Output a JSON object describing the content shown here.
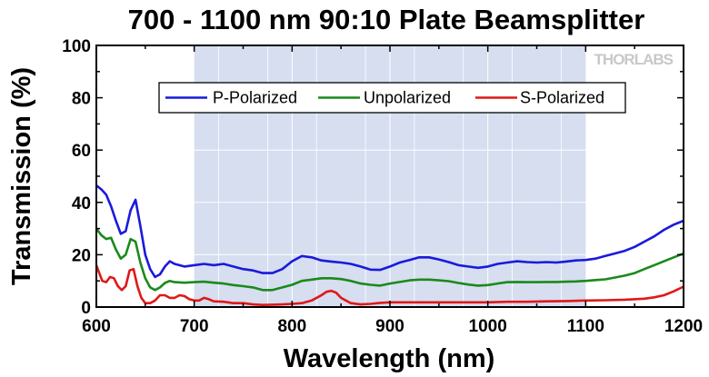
{
  "chart_data": {
    "type": "line",
    "title": "700 - 1100 nm 90:10 Plate Beamsplitter",
    "xlabel": "Wavelength (nm)",
    "ylabel": "Transmission (%)",
    "xlim": [
      600,
      1200
    ],
    "ylim": [
      0,
      100
    ],
    "xticks": [
      600,
      700,
      800,
      900,
      1000,
      1100,
      1200
    ],
    "yticks": [
      0,
      20,
      40,
      60,
      80,
      100
    ],
    "highlight_range": [
      700,
      1100
    ],
    "highlight_color": "#d6def0",
    "brand_text": "THORLABS",
    "legend_position": "top-center",
    "series": [
      {
        "name": "P-Polarized",
        "color": "#1a1adc",
        "x": [
          600,
          605,
          610,
          615,
          620,
          625,
          630,
          635,
          640,
          645,
          650,
          655,
          660,
          665,
          670,
          675,
          680,
          690,
          700,
          710,
          720,
          730,
          740,
          750,
          760,
          770,
          780,
          790,
          800,
          810,
          820,
          830,
          840,
          850,
          860,
          870,
          880,
          890,
          900,
          910,
          920,
          930,
          940,
          950,
          960,
          970,
          980,
          990,
          1000,
          1010,
          1020,
          1030,
          1040,
          1050,
          1060,
          1070,
          1080,
          1090,
          1100,
          1110,
          1120,
          1130,
          1140,
          1150,
          1160,
          1170,
          1180,
          1190,
          1200
        ],
        "y": [
          46.5,
          45,
          43,
          38.5,
          33,
          28,
          29,
          37,
          41,
          31,
          20,
          14.5,
          11.5,
          12.5,
          15.5,
          17.5,
          16.5,
          15.5,
          16,
          16.5,
          16,
          16.5,
          15.5,
          14.5,
          14,
          13,
          13,
          14.5,
          17.5,
          19.5,
          19,
          17.8,
          17.4,
          17,
          16.5,
          15.5,
          14.3,
          14.2,
          15.5,
          17,
          18,
          19,
          19,
          18.2,
          17.2,
          16,
          15.5,
          15,
          15.5,
          16.5,
          17,
          17.5,
          17.2,
          17,
          17.2,
          17,
          17.4,
          17.8,
          18,
          18.5,
          19.5,
          20.5,
          21.5,
          23,
          25,
          27,
          29.5,
          31.5,
          33
        ]
      },
      {
        "name": "Unpolarized",
        "color": "#1a8a1a",
        "x": [
          600,
          605,
          610,
          615,
          620,
          625,
          630,
          635,
          640,
          645,
          650,
          655,
          660,
          665,
          670,
          675,
          680,
          690,
          700,
          710,
          720,
          730,
          740,
          750,
          760,
          770,
          780,
          790,
          800,
          810,
          820,
          830,
          840,
          850,
          860,
          870,
          880,
          890,
          900,
          910,
          920,
          930,
          940,
          950,
          960,
          970,
          980,
          990,
          1000,
          1010,
          1020,
          1030,
          1040,
          1050,
          1060,
          1070,
          1080,
          1090,
          1100,
          1110,
          1120,
          1130,
          1140,
          1150,
          1160,
          1170,
          1180,
          1190,
          1200
        ],
        "y": [
          30,
          27.5,
          26,
          26.5,
          22,
          18.5,
          20,
          26,
          25,
          17,
          11,
          7.5,
          6.5,
          7.5,
          9.2,
          10,
          9.5,
          9.3,
          9.5,
          9.7,
          9.3,
          9,
          8.4,
          8,
          7.5,
          6.5,
          6.5,
          7.5,
          8.5,
          10,
          10.5,
          11,
          11,
          10.7,
          10,
          9,
          8.5,
          8.2,
          9,
          9.6,
          10.2,
          10.5,
          10.5,
          10.2,
          9.9,
          9.2,
          8.6,
          8.2,
          8.4,
          9,
          9.5,
          9.6,
          9.5,
          9.5,
          9.6,
          9.6,
          9.7,
          9.8,
          10,
          10.3,
          10.6,
          11.3,
          12,
          13,
          14.5,
          16,
          17.5,
          19,
          20.5
        ]
      },
      {
        "name": "S-Polarized",
        "color": "#e01818",
        "x": [
          600,
          603,
          606,
          610,
          614,
          618,
          622,
          626,
          630,
          634,
          638,
          642,
          646,
          650,
          655,
          660,
          665,
          670,
          675,
          680,
          685,
          690,
          695,
          700,
          705,
          710,
          715,
          720,
          730,
          740,
          750,
          760,
          770,
          780,
          790,
          800,
          810,
          820,
          830,
          835,
          840,
          845,
          850,
          860,
          870,
          880,
          890,
          900,
          920,
          940,
          960,
          980,
          1000,
          1020,
          1040,
          1060,
          1080,
          1100,
          1120,
          1140,
          1160,
          1170,
          1180,
          1190,
          1200
        ],
        "y": [
          16,
          13,
          10,
          9.5,
          11.5,
          11,
          8,
          6.5,
          8,
          14,
          14.5,
          8,
          3.5,
          1.5,
          1.5,
          2.5,
          4.5,
          4.5,
          3.5,
          3.5,
          4.5,
          4.2,
          3,
          2.5,
          2.5,
          3.5,
          3,
          2.2,
          2,
          1.5,
          1.5,
          1,
          0.8,
          0.9,
          1,
          1.2,
          1.5,
          2.5,
          4.5,
          5.8,
          6.2,
          5.5,
          3.5,
          1.5,
          1,
          1.2,
          1.6,
          1.8,
          1.8,
          1.8,
          1.8,
          1.8,
          1.8,
          2,
          2,
          2.2,
          2.3,
          2.5,
          2.6,
          2.8,
          3.2,
          3.7,
          4.5,
          6,
          7.8
        ]
      }
    ]
  }
}
